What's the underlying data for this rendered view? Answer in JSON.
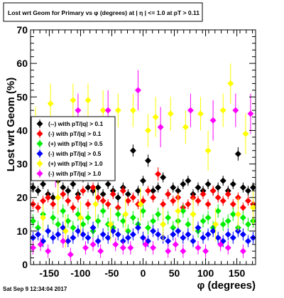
{
  "title": "Lost wrt Geom for Primary vs φ (degrees) at | η | <= 1.0 at pT > 0.11",
  "timestamp": "Sat Sep  9 12:34:04 2017",
  "chart_data": {
    "type": "scatter",
    "xlabel": "φ (degrees)",
    "ylabel": "Lost wrt Geom (%)",
    "xlim": [
      -180,
      180
    ],
    "ylim": [
      0,
      70
    ],
    "x_ticks": [
      -150,
      -100,
      -50,
      0,
      50,
      100,
      150
    ],
    "y_ticks": [
      0,
      10,
      20,
      30,
      40,
      50,
      60,
      70
    ],
    "grid": false,
    "legend_position": "left-middle",
    "series": [
      {
        "name": "(--) with pT/|q| > 0.1",
        "color": "#000000",
        "marker": "diamond",
        "x": [
          -176,
          -168,
          -160,
          -152,
          -144,
          -136,
          -128,
          -120,
          -112,
          -104,
          -96,
          -88,
          -80,
          -72,
          -64,
          -56,
          -48,
          -40,
          -32,
          -24,
          -16,
          -8,
          0,
          8,
          16,
          24,
          32,
          40,
          48,
          56,
          64,
          72,
          80,
          88,
          96,
          104,
          112,
          120,
          128,
          136,
          144,
          152,
          160,
          168,
          176
        ],
        "y": [
          23,
          22,
          24,
          21,
          20,
          25,
          23,
          22,
          24,
          21,
          26,
          23,
          22,
          23,
          21,
          24,
          22,
          20,
          23,
          21,
          34,
          22,
          25,
          31,
          22,
          23,
          26,
          21,
          23,
          22,
          24,
          25,
          21,
          23,
          22,
          24,
          22,
          23,
          25,
          22,
          24,
          33,
          23,
          22,
          23
        ],
        "yerr": [
          1.5,
          1.5,
          1.5,
          1.5,
          1.5,
          1.5,
          1.5,
          1.5,
          1.5,
          1.5,
          1.5,
          1.5,
          1.5,
          1.5,
          1.5,
          1.5,
          1.5,
          1.5,
          1.5,
          1.5,
          1.8,
          1.5,
          1.5,
          1.8,
          1.5,
          1.5,
          1.5,
          1.5,
          1.5,
          1.5,
          1.5,
          1.5,
          1.5,
          1.5,
          1.5,
          1.5,
          1.5,
          1.5,
          1.5,
          1.5,
          1.5,
          2.0,
          1.5,
          1.5,
          1.5
        ]
      },
      {
        "name": "(-) with pT/|q| > 0.1",
        "color": "#ff0000",
        "marker": "diamond",
        "x": [
          -176,
          -168,
          -160,
          -152,
          -144,
          -136,
          -128,
          -120,
          -112,
          -104,
          -96,
          -88,
          -80,
          -72,
          -64,
          -56,
          -48,
          -40,
          -32,
          -24,
          -16,
          -8,
          0,
          8,
          16,
          24,
          32,
          40,
          48,
          56,
          64,
          72,
          80,
          88,
          96,
          104,
          112,
          120,
          128,
          136,
          144,
          152,
          160,
          168,
          176
        ],
        "y": [
          18,
          17,
          19,
          20,
          18,
          27,
          21,
          19,
          17,
          20,
          22,
          18,
          23,
          20,
          19,
          18,
          21,
          17,
          22,
          19,
          20,
          18,
          19,
          22,
          20,
          27,
          18,
          21,
          19,
          20,
          17,
          18,
          20,
          19,
          21,
          18,
          22,
          20,
          19,
          21,
          18,
          20,
          17,
          19,
          18
        ],
        "yerr": [
          1.5,
          1.5,
          1.5,
          1.5,
          1.5,
          2.0,
          1.5,
          1.5,
          1.5,
          1.5,
          1.5,
          1.5,
          1.5,
          1.5,
          1.5,
          1.5,
          1.5,
          1.5,
          1.5,
          1.5,
          1.5,
          1.5,
          1.5,
          1.5,
          1.5,
          2.0,
          1.5,
          1.5,
          1.5,
          1.5,
          1.5,
          1.5,
          1.5,
          1.5,
          1.5,
          1.5,
          1.5,
          1.5,
          1.5,
          1.5,
          1.5,
          1.5,
          1.5,
          1.5,
          1.5
        ]
      },
      {
        "name": "(+) with pT/|q| > 0.5",
        "color": "#00ee00",
        "marker": "diamond",
        "x": [
          -176,
          -168,
          -160,
          -152,
          -144,
          -136,
          -128,
          -120,
          -112,
          -104,
          -96,
          -88,
          -80,
          -72,
          -64,
          -56,
          -48,
          -40,
          -32,
          -24,
          -16,
          -8,
          0,
          8,
          16,
          24,
          32,
          40,
          48,
          56,
          64,
          72,
          80,
          88,
          96,
          104,
          112,
          120,
          128,
          136,
          144,
          152,
          160,
          168,
          176
        ],
        "y": [
          13,
          11,
          15,
          10,
          14,
          12,
          16,
          13,
          11,
          15,
          12,
          14,
          10,
          13,
          16,
          12,
          11,
          15,
          13,
          10,
          14,
          12,
          16,
          11,
          13,
          15,
          12,
          14,
          11,
          13,
          16,
          12,
          15,
          10,
          13,
          14,
          11,
          16,
          12,
          13,
          15,
          11,
          14,
          12,
          13
        ],
        "yerr": [
          2,
          2,
          2,
          2,
          2,
          2,
          2,
          2,
          2,
          2,
          2,
          2,
          2,
          2,
          2,
          2,
          2,
          2,
          2,
          2,
          2,
          2,
          2,
          2,
          2,
          2,
          2,
          2,
          2,
          2,
          2,
          2,
          2,
          2,
          2,
          2,
          2,
          2,
          2,
          2,
          2,
          2,
          2,
          2,
          2
        ]
      },
      {
        "name": "(-) with pT/|q| > 0.5",
        "color": "#0000ff",
        "marker": "diamond",
        "x": [
          -176,
          -168,
          -160,
          -152,
          -144,
          -136,
          -128,
          -120,
          -112,
          -104,
          -96,
          -88,
          -80,
          -72,
          -64,
          -56,
          -48,
          -40,
          -32,
          -24,
          -16,
          -8,
          0,
          8,
          16,
          24,
          32,
          40,
          48,
          56,
          64,
          72,
          80,
          88,
          96,
          104,
          112,
          120,
          128,
          136,
          144,
          152,
          160,
          168,
          176
        ],
        "y": [
          8,
          9,
          7,
          10,
          8,
          9,
          11,
          7,
          8,
          10,
          9,
          8,
          11,
          7,
          9,
          8,
          10,
          9,
          7,
          8,
          9,
          11,
          8,
          7,
          10,
          9,
          8,
          7,
          9,
          10,
          8,
          9,
          7,
          11,
          8,
          9,
          10,
          8,
          7,
          9,
          8,
          10,
          9,
          7,
          8
        ],
        "yerr": [
          1.8,
          1.8,
          1.8,
          1.8,
          1.8,
          1.8,
          1.8,
          1.8,
          1.8,
          1.8,
          1.8,
          1.8,
          1.8,
          1.8,
          1.8,
          1.8,
          1.8,
          1.8,
          1.8,
          1.8,
          1.8,
          1.8,
          1.8,
          1.8,
          1.8,
          1.8,
          1.8,
          1.8,
          1.8,
          1.8,
          1.8,
          1.8,
          1.8,
          1.8,
          1.8,
          1.8,
          1.8,
          1.8,
          1.8,
          1.8,
          1.8,
          1.8,
          1.8,
          1.8,
          1.8
        ]
      },
      {
        "name": "(+) with pT/|q| > 1.0",
        "color": "#ffff00",
        "marker": "diamond",
        "x": [
          -172,
          -160,
          -148,
          -136,
          -124,
          -112,
          -100,
          -88,
          -76,
          -64,
          -52,
          -40,
          -28,
          -16,
          -4,
          8,
          20,
          32,
          44,
          56,
          68,
          80,
          92,
          104,
          116,
          128,
          140,
          152,
          164,
          176
        ],
        "y": [
          43,
          14,
          48,
          20,
          10,
          49,
          14,
          49,
          18,
          46,
          12,
          46,
          15,
          46,
          18,
          40,
          44,
          12,
          45,
          16,
          41,
          15,
          45,
          34,
          12,
          46,
          54,
          15,
          39,
          17
        ],
        "yerr": [
          4,
          4,
          6,
          5,
          5,
          5,
          5,
          5,
          5,
          6,
          5,
          5,
          5,
          5,
          5,
          5,
          6,
          5,
          5,
          5,
          5,
          5,
          5,
          6,
          5,
          5,
          6,
          5,
          6,
          5
        ]
      },
      {
        "name": "(-) with pT/|q| > 1.0",
        "color": "#ff00ff",
        "marker": "diamond",
        "x": [
          -176,
          -164,
          -152,
          -140,
          -128,
          -116,
          -104,
          -92,
          -80,
          -68,
          -56,
          -44,
          -32,
          -20,
          -8,
          4,
          16,
          28,
          40,
          52,
          64,
          76,
          88,
          100,
          112,
          124,
          136,
          148,
          160,
          172
        ],
        "y": [
          5,
          6,
          4,
          27,
          7,
          3,
          46,
          5,
          6,
          4,
          46,
          6,
          5,
          5,
          52,
          6,
          5,
          41,
          4,
          6,
          4,
          46,
          5,
          4,
          43,
          6,
          5,
          46,
          4,
          45
        ],
        "yerr": [
          2,
          2,
          2,
          4,
          2,
          2,
          5,
          2,
          2,
          2,
          6,
          2,
          2,
          2,
          6,
          2,
          2,
          6,
          2,
          2,
          2,
          5,
          2,
          2,
          6,
          2,
          2,
          5,
          2,
          6
        ]
      }
    ]
  }
}
